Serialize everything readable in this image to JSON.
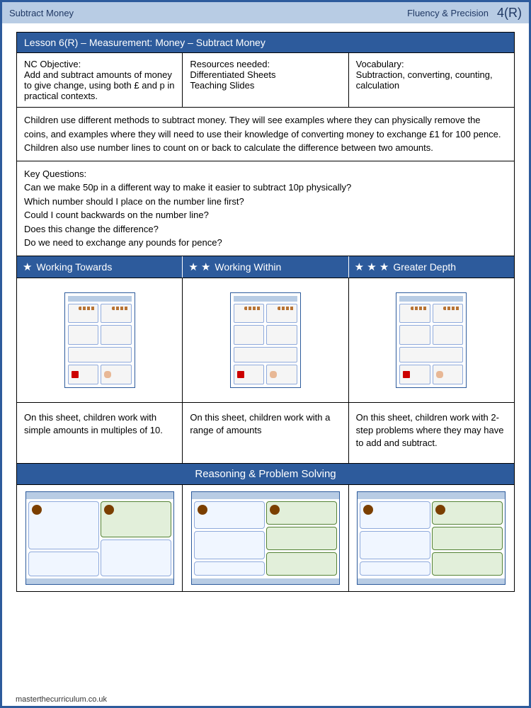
{
  "header": {
    "left": "Subtract Money",
    "right": "Fluency & Precision",
    "page": "4(R)"
  },
  "lesson_title": "Lesson 6(R) – Measurement: Money – Subtract Money",
  "objectives": {
    "nc": {
      "heading": "NC Objective:",
      "text": "Add and subtract amounts of money to give change, using both £ and p in practical contexts."
    },
    "resources": {
      "heading": "Resources needed:",
      "text": "Differentiated Sheets\nTeaching Slides"
    },
    "vocabulary": {
      "heading": "Vocabulary:",
      "text": "Subtraction, converting, counting, calculation"
    }
  },
  "description": "Children use different methods to subtract money. They will see examples where they can physically remove the coins, and examples where they will need to use their knowledge of converting money to exchange £1 for 100 pence. Children also use number lines to count on or back to calculate the difference between two amounts.",
  "key_questions": {
    "heading": "Key Questions:",
    "items": [
      "Can we make 50p in a different way to make it easier to subtract 10p physically?",
      "Which number should I place on the number line first?",
      "Could I count backwards on the number line?",
      "Does this change the difference?",
      "Do we need to exchange any pounds for pence?"
    ]
  },
  "levels": {
    "towards": {
      "label": "Working Towards",
      "stars": 1,
      "desc": "On this sheet, children work with simple amounts in multiples of 10."
    },
    "within": {
      "label": "Working Within",
      "stars": 2,
      "desc": "On this sheet, children work with a range of amounts"
    },
    "depth": {
      "label": "Greater Depth",
      "stars": 3,
      "desc": "On this sheet, children work with 2-step problems where they may have to add and subtract."
    }
  },
  "reasoning_header": "Reasoning & Problem Solving",
  "footer": "masterthecurriculum.co.uk",
  "colors": {
    "primary": "#2d5b9c",
    "light": "#b8cce4"
  }
}
